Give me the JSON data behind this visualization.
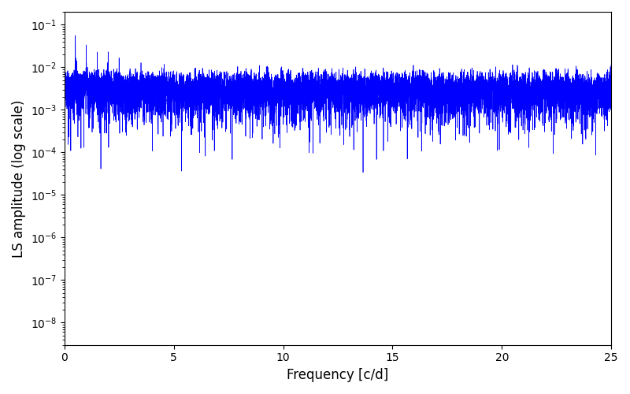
{
  "title": "",
  "xlabel": "Frequency [c/d]",
  "ylabel": "LS amplitude (log scale)",
  "xlim": [
    0,
    25
  ],
  "ylim": [
    3e-09,
    0.2
  ],
  "line_color": "#0000ff",
  "line_width": 0.5,
  "figsize": [
    8.0,
    5.0
  ],
  "dpi": 100,
  "yscale": "log",
  "yticks": [
    1e-08,
    1e-07,
    1e-06,
    1e-05,
    0.0001,
    0.001,
    0.01,
    0.1
  ],
  "xticks": [
    0,
    5,
    10,
    15,
    20,
    25
  ],
  "seed": 42,
  "n_points": 15000,
  "freq_max": 25.0
}
